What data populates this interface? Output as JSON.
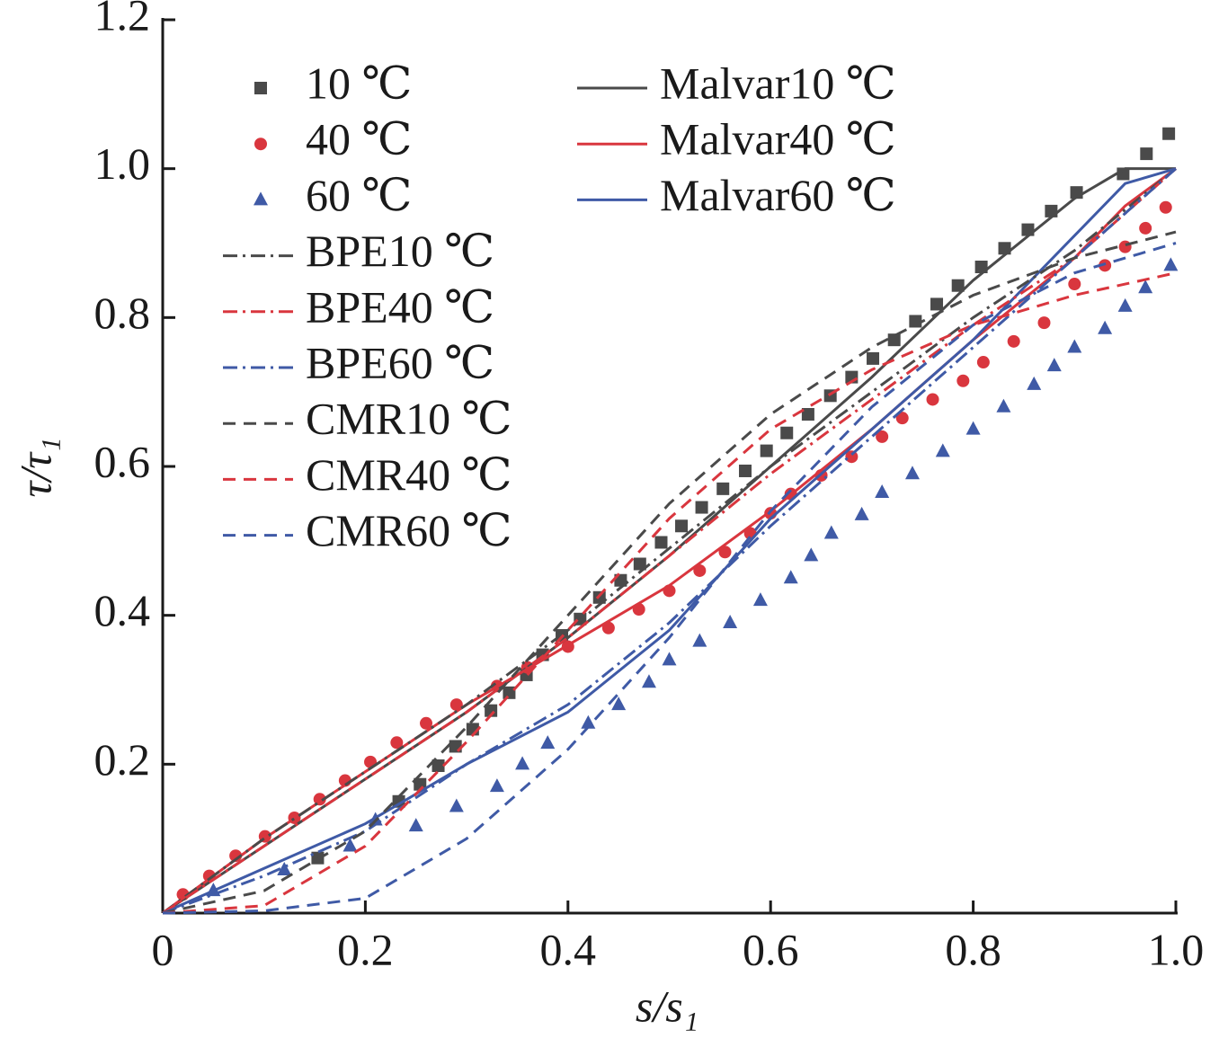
{
  "chart_data": {
    "type": "line",
    "xlabel": "s/s₁",
    "ylabel": "τ/τ₁",
    "xlim": [
      0,
      1
    ],
    "ylim": [
      0,
      1.2
    ],
    "xticks": [
      0,
      0.2,
      0.4,
      0.6,
      0.8,
      {
        "value": 1,
        "label": "1.0"
      }
    ],
    "yticks": [
      0.2,
      0.4,
      0.6,
      0.8,
      {
        "value": 1,
        "label": "1.0"
      },
      1.2
    ],
    "series": [
      {
        "name": "10 ℃",
        "color": "#4a4a4a",
        "marker": "square",
        "x": [
          0.153,
          0.233,
          0.254,
          0.272,
          0.289,
          0.306,
          0.324,
          0.342,
          0.359,
          0.375,
          0.394,
          0.412,
          0.431,
          0.452,
          0.471,
          0.492,
          0.512,
          0.532,
          0.553,
          0.575,
          0.596,
          0.616,
          0.637,
          0.659,
          0.68,
          0.701,
          0.722,
          0.743,
          0.764,
          0.785,
          0.808,
          0.831,
          0.854,
          0.877,
          0.902,
          0.948,
          0.971,
          0.993
        ],
        "values": [
          0.074,
          0.15,
          0.173,
          0.198,
          0.224,
          0.247,
          0.272,
          0.296,
          0.32,
          0.347,
          0.373,
          0.395,
          0.424,
          0.447,
          0.469,
          0.498,
          0.52,
          0.545,
          0.57,
          0.594,
          0.621,
          0.645,
          0.67,
          0.695,
          0.72,
          0.745,
          0.77,
          0.795,
          0.818,
          0.843,
          0.868,
          0.893,
          0.918,
          0.943,
          0.968,
          0.993,
          1.02,
          1.047
        ]
      },
      {
        "name": "40 ℃",
        "color": "#d9363e",
        "marker": "circle",
        "x": [
          0.02,
          0.046,
          0.072,
          0.101,
          0.13,
          0.155,
          0.18,
          0.205,
          0.231,
          0.26,
          0.29,
          0.33,
          0.36,
          0.4,
          0.44,
          0.47,
          0.5,
          0.53,
          0.555,
          0.58,
          0.6,
          0.62,
          0.65,
          0.68,
          0.71,
          0.73,
          0.76,
          0.79,
          0.81,
          0.84,
          0.87,
          0.9,
          0.93,
          0.95,
          0.97,
          0.99
        ],
        "values": [
          0.025,
          0.05,
          0.077,
          0.103,
          0.128,
          0.153,
          0.178,
          0.203,
          0.229,
          0.255,
          0.28,
          0.305,
          0.33,
          0.358,
          0.383,
          0.408,
          0.433,
          0.46,
          0.485,
          0.51,
          0.537,
          0.563,
          0.588,
          0.613,
          0.64,
          0.665,
          0.69,
          0.715,
          0.74,
          0.768,
          0.793,
          0.845,
          0.87,
          0.895,
          0.92,
          0.948
        ]
      },
      {
        "name": "60 ℃",
        "color": "#3f5aa6",
        "marker": "triangle",
        "x": [
          0.05,
          0.12,
          0.185,
          0.21,
          0.25,
          0.29,
          0.33,
          0.355,
          0.38,
          0.42,
          0.45,
          0.48,
          0.5,
          0.53,
          0.56,
          0.59,
          0.62,
          0.64,
          0.66,
          0.69,
          0.71,
          0.74,
          0.77,
          0.8,
          0.83,
          0.86,
          0.88,
          0.9,
          0.93,
          0.95,
          0.97,
          0.995
        ],
        "values": [
          0.03,
          0.058,
          0.09,
          0.125,
          0.117,
          0.143,
          0.17,
          0.2,
          0.228,
          0.255,
          0.28,
          0.31,
          0.34,
          0.365,
          0.39,
          0.42,
          0.45,
          0.48,
          0.51,
          0.535,
          0.565,
          0.59,
          0.62,
          0.65,
          0.68,
          0.71,
          0.735,
          0.76,
          0.785,
          0.815,
          0.84,
          0.87
        ]
      },
      {
        "name": "Malvar10 ℃",
        "color": "#4a4a4a",
        "dash": "solid",
        "x": [
          0,
          0.1,
          0.2,
          0.3,
          0.4,
          0.5,
          0.6,
          0.7,
          0.8,
          0.9,
          0.95,
          1
        ],
        "values": [
          0,
          0.09,
          0.18,
          0.27,
          0.37,
          0.48,
          0.6,
          0.72,
          0.85,
          0.96,
          1,
          1
        ]
      },
      {
        "name": "Malvar40 ℃",
        "color": "#d9363e",
        "dash": "solid",
        "x": [
          0,
          0.1,
          0.2,
          0.3,
          0.4,
          0.5,
          0.6,
          0.7,
          0.8,
          0.9,
          0.95,
          1
        ],
        "values": [
          0,
          0.1,
          0.19,
          0.28,
          0.36,
          0.44,
          0.54,
          0.65,
          0.77,
          0.88,
          0.95,
          1
        ]
      },
      {
        "name": "Malvar60 ℃",
        "color": "#3f5aa6",
        "dash": "solid",
        "x": [
          0,
          0.1,
          0.2,
          0.3,
          0.4,
          0.5,
          0.6,
          0.7,
          0.8,
          0.9,
          0.95,
          1
        ],
        "values": [
          0,
          0.06,
          0.12,
          0.2,
          0.27,
          0.38,
          0.53,
          0.65,
          0.77,
          0.91,
          0.98,
          1
        ]
      },
      {
        "name": "BPE10 ℃",
        "color": "#4a4a4a",
        "dash": "dashdot",
        "x": [
          0,
          0.1,
          0.2,
          0.3,
          0.4,
          0.5,
          0.6,
          0.7,
          0.8,
          0.9,
          1
        ],
        "values": [
          0,
          0.1,
          0.19,
          0.28,
          0.38,
          0.49,
          0.6,
          0.7,
          0.8,
          0.89,
          1
        ]
      },
      {
        "name": "BPE40 ℃",
        "color": "#d9363e",
        "dash": "dashdot",
        "x": [
          0,
          0.1,
          0.2,
          0.3,
          0.4,
          0.5,
          0.6,
          0.7,
          0.8,
          0.9,
          1
        ],
        "values": [
          0,
          0.09,
          0.18,
          0.27,
          0.37,
          0.48,
          0.59,
          0.69,
          0.79,
          0.88,
          1
        ]
      },
      {
        "name": "BPE60 ℃",
        "color": "#3f5aa6",
        "dash": "dashdot",
        "x": [
          0,
          0.1,
          0.2,
          0.3,
          0.4,
          0.5,
          0.6,
          0.7,
          0.8,
          0.9,
          1
        ],
        "values": [
          0,
          0.05,
          0.11,
          0.2,
          0.28,
          0.39,
          0.52,
          0.64,
          0.76,
          0.88,
          1
        ]
      },
      {
        "name": "CMR10 ℃",
        "color": "#4a4a4a",
        "dash": "dash",
        "x": [
          0,
          0.1,
          0.2,
          0.3,
          0.4,
          0.5,
          0.6,
          0.7,
          0.8,
          0.9,
          1
        ],
        "values": [
          0,
          0.03,
          0.11,
          0.25,
          0.4,
          0.55,
          0.67,
          0.76,
          0.83,
          0.88,
          0.915
        ]
      },
      {
        "name": "CMR40 ℃",
        "color": "#d9363e",
        "dash": "dash",
        "x": [
          0,
          0.1,
          0.2,
          0.3,
          0.4,
          0.5,
          0.6,
          0.7,
          0.8,
          0.9,
          1
        ],
        "values": [
          0,
          0.01,
          0.09,
          0.23,
          0.38,
          0.53,
          0.65,
          0.73,
          0.79,
          0.83,
          0.86
        ]
      },
      {
        "name": "CMR60 ℃",
        "color": "#3f5aa6",
        "dash": "dash",
        "x": [
          0,
          0.1,
          0.2,
          0.3,
          0.4,
          0.5,
          0.6,
          0.7,
          0.8,
          0.9,
          1
        ],
        "values": [
          0,
          0.003,
          0.02,
          0.1,
          0.22,
          0.37,
          0.54,
          0.68,
          0.79,
          0.86,
          0.9
        ]
      }
    ]
  }
}
